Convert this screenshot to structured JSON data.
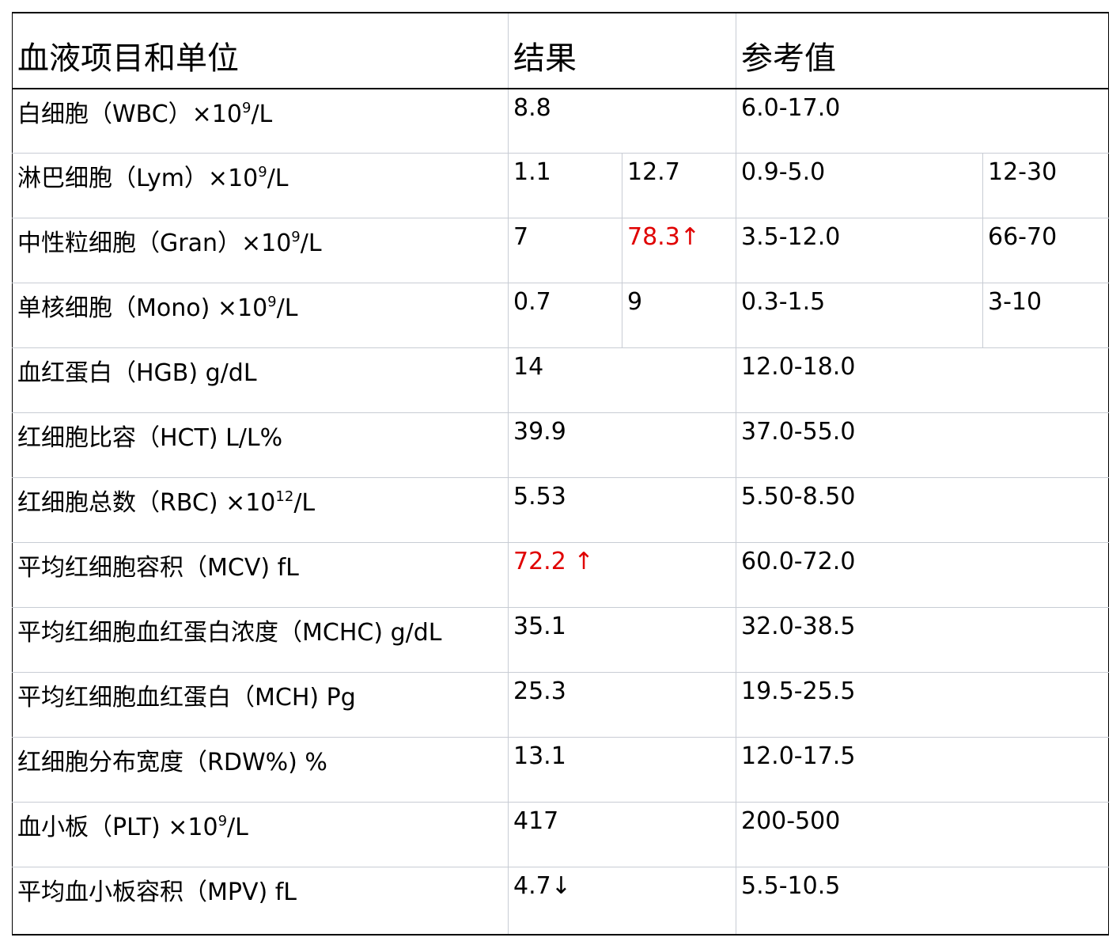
{
  "header": {
    "item": "血液项目和单位",
    "result": "结果",
    "reference": "参考值"
  },
  "rows": [
    {
      "name_pre": "白细胞（WBC）×10",
      "sup": "9",
      "name_post": "/L",
      "result": "8.8",
      "reference": "6.0-17.0"
    },
    {
      "name_pre": "淋巴细胞（Lym）×10",
      "sup": "9",
      "name_post": "/L",
      "result": "1.1",
      "result_pct": "12.7",
      "reference": "0.9-5.0",
      "reference_pct": "12-30"
    },
    {
      "name_pre": "中性粒细胞（Gran）×10",
      "sup": "9",
      "name_post": "/L",
      "result": "7",
      "result_pct": "78.3↑",
      "reference": "3.5-12.0",
      "reference_pct": "66-70"
    },
    {
      "name_pre": "单核细胞（Mono) ×10",
      "sup": "9",
      "name_post": "/L",
      "result": "0.7",
      "result_pct": "9",
      "reference": "0.3-1.5",
      "reference_pct": "3-10"
    },
    {
      "name_pre": "血红蛋白（HGB) g/dL",
      "result": "14",
      "reference": "12.0-18.0"
    },
    {
      "name_pre": "红细胞比容（HCT) L/L%",
      "result": "39.9",
      "reference": "37.0-55.0"
    },
    {
      "name_pre": "红细胞总数（RBC) ×10",
      "sup": "12",
      "name_post": "/L",
      "result": "5.53",
      "reference": "5.50-8.50"
    },
    {
      "name_pre": "平均红细胞容积（MCV) fL",
      "result": "72.2 ↑",
      "reference": "60.0-72.0"
    },
    {
      "name_pre": "平均红细胞血红蛋白浓度（MCHC) g/dL",
      "result": "35.1",
      "reference": "32.0-38.5"
    },
    {
      "name_pre": "平均红细胞血红蛋白（MCH) Pg",
      "result": "25.3",
      "reference": "19.5-25.5"
    },
    {
      "name_pre": "红细胞分布宽度（RDW%) %",
      "result": "13.1",
      "reference": "12.0-17.5"
    },
    {
      "name_pre": "血小板（PLT) ×10",
      "sup": "9",
      "name_post": "/L",
      "result": "417",
      "reference": "200-500"
    },
    {
      "name_pre": "平均血小板容积（MPV) fL",
      "result": "4.7↓",
      "reference": "5.5-10.5"
    }
  ],
  "colors": {
    "abnormal": "#e00000",
    "grid": "#c8ccd4"
  }
}
